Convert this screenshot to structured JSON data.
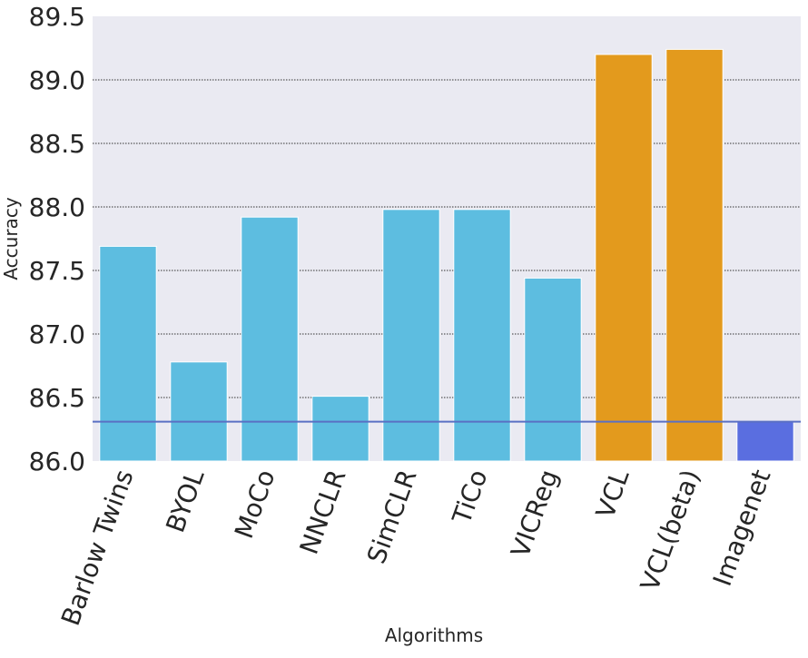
{
  "chart_data": {
    "type": "bar",
    "xlabel": "Algorithms",
    "ylabel": "Accuracy",
    "ylim": [
      86.0,
      89.5
    ],
    "yticks": [
      "86.0",
      "86.5",
      "87.0",
      "87.5",
      "88.0",
      "88.5",
      "89.0",
      "89.5"
    ],
    "categories": [
      "Barlow Twins",
      "BYOL",
      "MoCo",
      "NNCLR",
      "SimCLR",
      "TiCo",
      "VICReg",
      "VCL",
      "VCL(beta)",
      "Imagenet"
    ],
    "values": [
      87.69,
      86.78,
      87.92,
      86.51,
      87.98,
      87.98,
      87.44,
      89.2,
      89.24,
      86.31
    ],
    "bar_colors": [
      "#5dbde0",
      "#5dbde0",
      "#5dbde0",
      "#5dbde0",
      "#5dbde0",
      "#5dbde0",
      "#5dbde0",
      "#e39a1d",
      "#e39a1d",
      "#5a6ee0"
    ],
    "reference_line": 86.31,
    "reference_line_color": "#5a70c4",
    "background_color": "#eaeaf2",
    "grid": true,
    "grid_style": "dotted"
  }
}
